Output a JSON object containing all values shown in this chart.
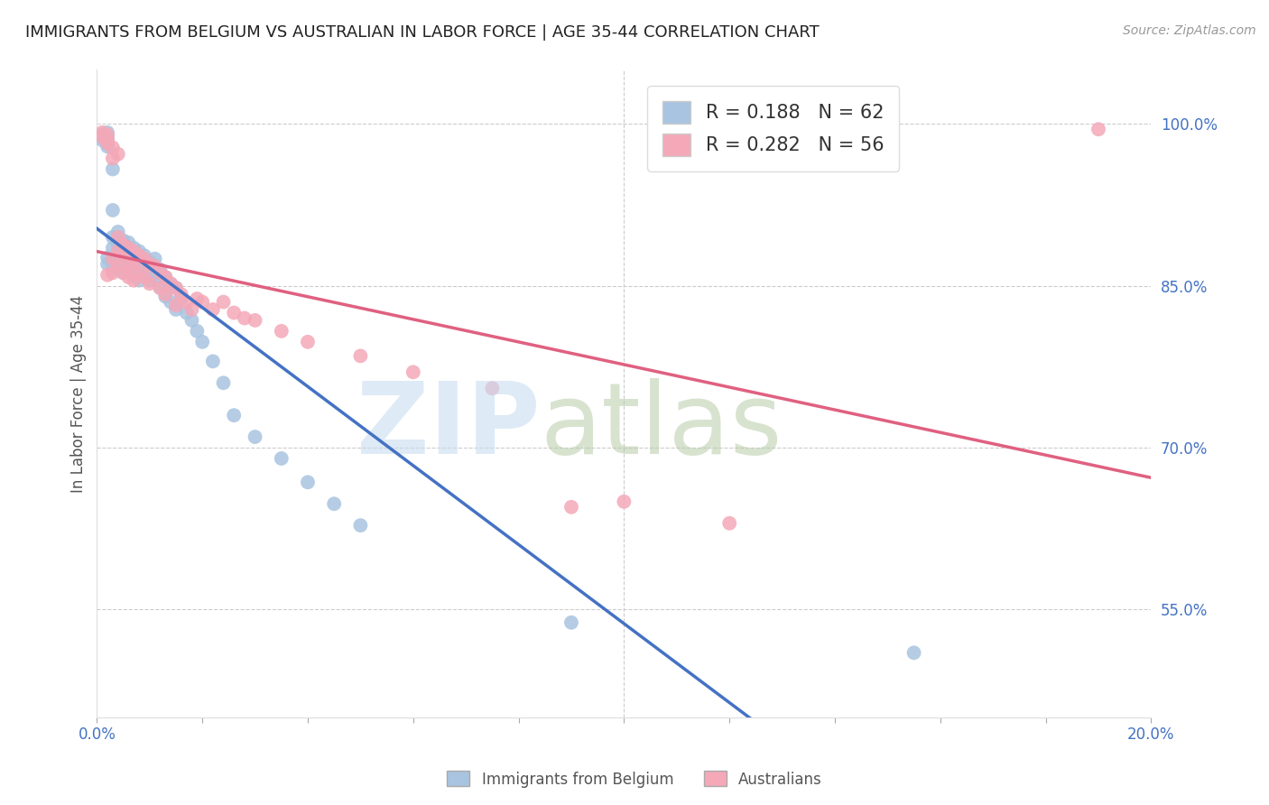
{
  "title": "IMMIGRANTS FROM BELGIUM VS AUSTRALIAN IN LABOR FORCE | AGE 35-44 CORRELATION CHART",
  "source": "Source: ZipAtlas.com",
  "ylabel": "In Labor Force | Age 35-44",
  "x_min": 0.0,
  "x_max": 0.2,
  "y_min": 0.45,
  "y_max": 1.05,
  "y_ticks": [
    0.55,
    0.7,
    0.85,
    1.0
  ],
  "y_tick_labels": [
    "55.0%",
    "70.0%",
    "85.0%",
    "100.0%"
  ],
  "legend_labels": [
    "Immigrants from Belgium",
    "Australians"
  ],
  "blue_R": "0.188",
  "blue_N": "62",
  "pink_R": "0.282",
  "pink_N": "56",
  "blue_color": "#a8c4e0",
  "pink_color": "#f4a8b8",
  "blue_line_color": "#4472c4",
  "pink_line_color": "#e06080",
  "blue_scatter_x": [
    0.001,
    0.001,
    0.001,
    0.002,
    0.002,
    0.002,
    0.002,
    0.002,
    0.002,
    0.002,
    0.003,
    0.003,
    0.003,
    0.003,
    0.003,
    0.003,
    0.004,
    0.004,
    0.004,
    0.004,
    0.005,
    0.005,
    0.005,
    0.005,
    0.006,
    0.006,
    0.006,
    0.007,
    0.007,
    0.007,
    0.008,
    0.008,
    0.008,
    0.009,
    0.009,
    0.01,
    0.01,
    0.011,
    0.011,
    0.012,
    0.012,
    0.013,
    0.013,
    0.014,
    0.014,
    0.015,
    0.015,
    0.016,
    0.017,
    0.018,
    0.019,
    0.02,
    0.022,
    0.024,
    0.026,
    0.03,
    0.035,
    0.04,
    0.045,
    0.05,
    0.09,
    0.155
  ],
  "blue_scatter_y": [
    0.99,
    0.988,
    0.985,
    0.992,
    0.988,
    0.985,
    0.982,
    0.979,
    0.876,
    0.87,
    0.958,
    0.92,
    0.895,
    0.885,
    0.875,
    0.868,
    0.9,
    0.888,
    0.878,
    0.865,
    0.892,
    0.882,
    0.872,
    0.862,
    0.89,
    0.878,
    0.868,
    0.885,
    0.875,
    0.86,
    0.882,
    0.87,
    0.855,
    0.878,
    0.862,
    0.872,
    0.855,
    0.875,
    0.858,
    0.865,
    0.848,
    0.858,
    0.84,
    0.852,
    0.835,
    0.848,
    0.828,
    0.838,
    0.825,
    0.818,
    0.808,
    0.798,
    0.78,
    0.76,
    0.73,
    0.71,
    0.69,
    0.668,
    0.648,
    0.628,
    0.538,
    0.51
  ],
  "pink_scatter_x": [
    0.001,
    0.001,
    0.002,
    0.002,
    0.002,
    0.002,
    0.003,
    0.003,
    0.003,
    0.003,
    0.004,
    0.004,
    0.004,
    0.004,
    0.005,
    0.005,
    0.005,
    0.006,
    0.006,
    0.006,
    0.007,
    0.007,
    0.007,
    0.008,
    0.008,
    0.009,
    0.009,
    0.01,
    0.01,
    0.011,
    0.012,
    0.012,
    0.013,
    0.013,
    0.014,
    0.015,
    0.015,
    0.016,
    0.017,
    0.018,
    0.019,
    0.02,
    0.022,
    0.024,
    0.026,
    0.028,
    0.03,
    0.035,
    0.04,
    0.05,
    0.06,
    0.075,
    0.09,
    0.1,
    0.12,
    0.19
  ],
  "pink_scatter_y": [
    0.992,
    0.988,
    0.99,
    0.985,
    0.982,
    0.86,
    0.978,
    0.968,
    0.875,
    0.862,
    0.972,
    0.895,
    0.882,
    0.868,
    0.888,
    0.878,
    0.862,
    0.885,
    0.87,
    0.858,
    0.882,
    0.87,
    0.855,
    0.878,
    0.862,
    0.875,
    0.858,
    0.87,
    0.852,
    0.868,
    0.862,
    0.848,
    0.858,
    0.842,
    0.852,
    0.848,
    0.832,
    0.842,
    0.835,
    0.828,
    0.838,
    0.835,
    0.828,
    0.835,
    0.825,
    0.82,
    0.818,
    0.808,
    0.798,
    0.785,
    0.77,
    0.755,
    0.645,
    0.65,
    0.63,
    0.995
  ]
}
